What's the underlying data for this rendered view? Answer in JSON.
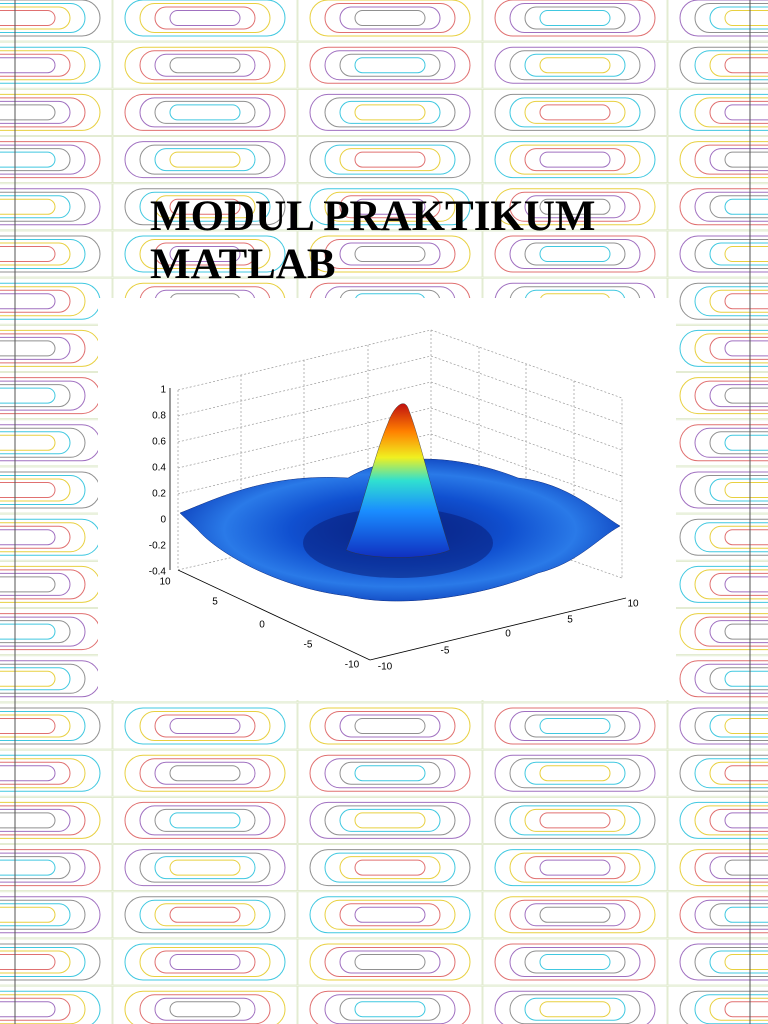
{
  "title": {
    "line1": "MODUL PRAKTIKUM",
    "line2": "MATLAB"
  },
  "figure": {
    "z_ticks": [
      "1",
      "0.8",
      "0.6",
      "0.4",
      "0.2",
      "0",
      "-0.2",
      "-0.4"
    ],
    "y_ticks": [
      "10",
      "5",
      "0",
      "-5",
      "-10"
    ],
    "x_ticks": [
      "-10",
      "-5",
      "0",
      "5",
      "10"
    ]
  }
}
